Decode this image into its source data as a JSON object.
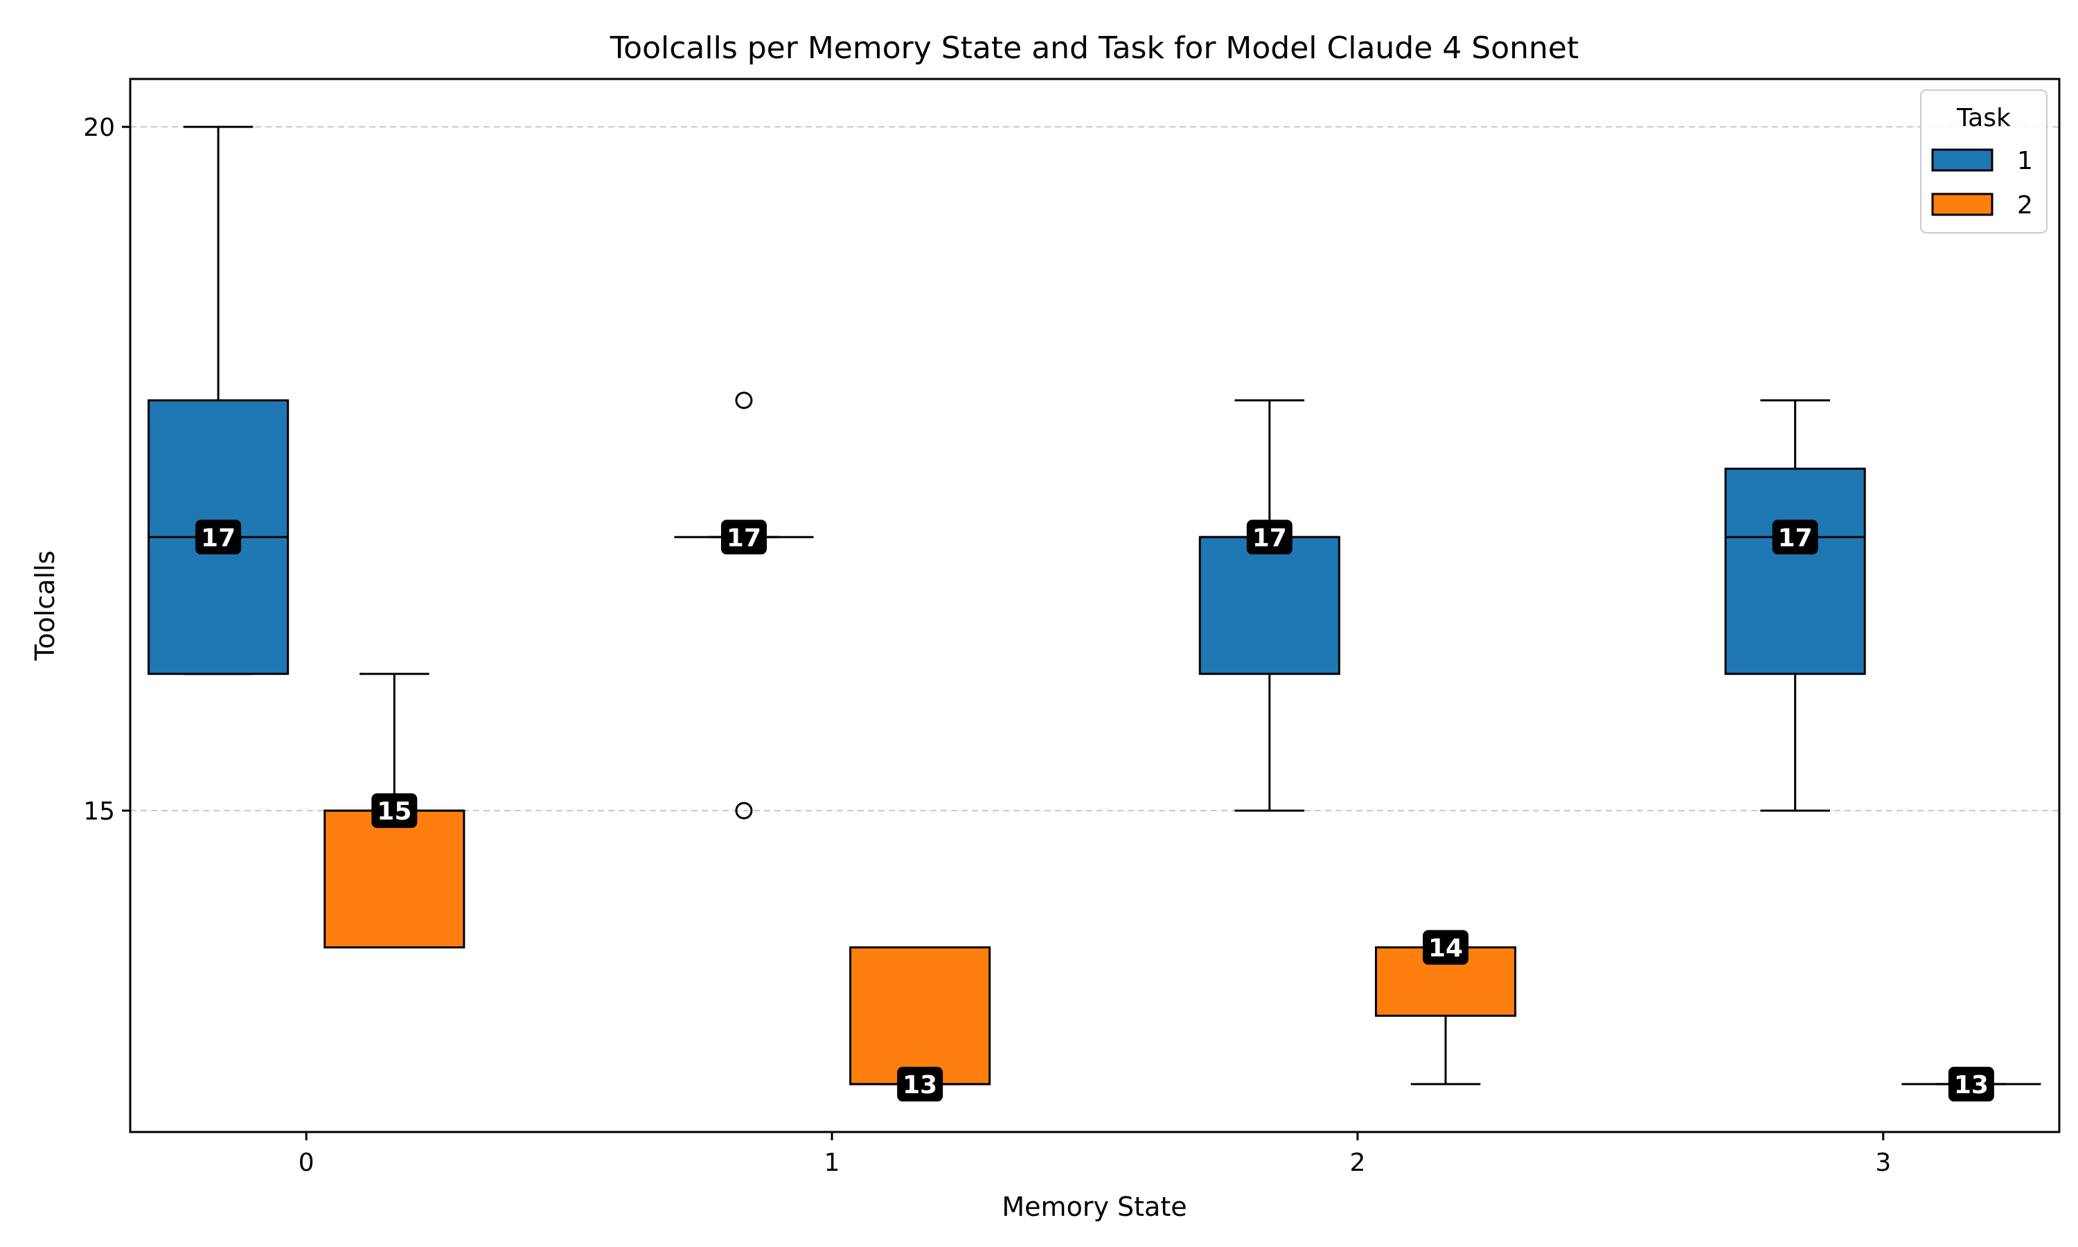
{
  "chart_data": {
    "type": "box",
    "title": "Toolcalls per Memory State and Task for Model Claude 4 Sonnet",
    "xlabel": "Memory State",
    "ylabel": "Toolcalls",
    "categories": [
      "0",
      "1",
      "2",
      "3"
    ],
    "ylim": [
      12.65,
      20.35
    ],
    "yticks": [
      15,
      20
    ],
    "grid": "horizontal dashed at y ticks",
    "legend": {
      "title": "Task",
      "placement": "top-right"
    },
    "series": [
      {
        "name": "1",
        "color": "#1f77b4",
        "boxes": [
          {
            "whisker_low": 16,
            "q1": 16,
            "median": 17,
            "q3": 18,
            "whisker_high": 20,
            "outliers": []
          },
          {
            "whisker_low": 17,
            "q1": 17,
            "median": 17,
            "q3": 17,
            "whisker_high": 17,
            "outliers": [
              15,
              18
            ]
          },
          {
            "whisker_low": 15,
            "q1": 16,
            "median": 17,
            "q3": 17,
            "whisker_high": 18,
            "outliers": []
          },
          {
            "whisker_low": 15,
            "q1": 16,
            "median": 17,
            "q3": 17.5,
            "whisker_high": 18,
            "outliers": []
          }
        ],
        "median_labels": [
          "17",
          "17",
          "17",
          "17"
        ]
      },
      {
        "name": "2",
        "color": "#ff7f0e",
        "boxes": [
          {
            "whisker_low": 14,
            "q1": 14,
            "median": 15,
            "q3": 15,
            "whisker_high": 16,
            "outliers": []
          },
          {
            "whisker_low": 13,
            "q1": 13,
            "median": 13,
            "q3": 14,
            "whisker_high": 14,
            "outliers": []
          },
          {
            "whisker_low": 13,
            "q1": 13.5,
            "median": 14,
            "q3": 14,
            "whisker_high": 14,
            "outliers": []
          },
          {
            "whisker_low": 13,
            "q1": 13,
            "median": 13,
            "q3": 13,
            "whisker_high": 13,
            "outliers": []
          }
        ],
        "median_labels": [
          "15",
          "13",
          "14",
          "13"
        ]
      }
    ]
  }
}
